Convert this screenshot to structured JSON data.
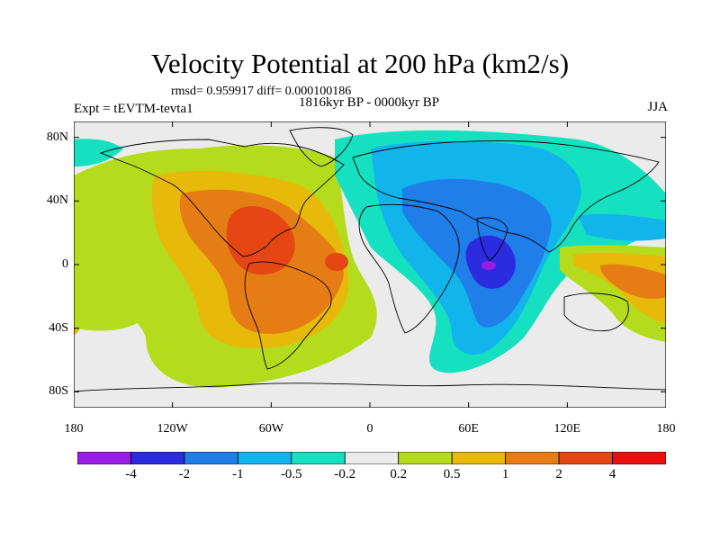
{
  "header": {
    "title": "Velocity Potential at 200 hPa (km2/s)",
    "stats": "rmsd= 0.959917 diff= 0.000100186",
    "subtitle": "1816kyr BP - 0000kyr BP",
    "experiment": "Expt = tEVTM-tevta1",
    "season": "JJA"
  },
  "map": {
    "projection": "cylindrical-equidistant",
    "lon_range": [
      -180,
      180
    ],
    "lat_range": [
      -90,
      90
    ],
    "lat_ticks": [
      {
        "label": "80N",
        "value": 80
      },
      {
        "label": "40N",
        "value": 40
      },
      {
        "label": "0",
        "value": 0
      },
      {
        "label": "40S",
        "value": -40
      },
      {
        "label": "80S",
        "value": -80
      }
    ],
    "lon_ticks": [
      {
        "label": "180",
        "value": -180
      },
      {
        "label": "120W",
        "value": -120
      },
      {
        "label": "60W",
        "value": -60
      },
      {
        "label": "0",
        "value": 0
      },
      {
        "label": "60E",
        "value": 60
      },
      {
        "label": "120E",
        "value": 120
      },
      {
        "label": "180",
        "value": 180
      }
    ]
  },
  "colorbar": {
    "labels": [
      "-4",
      "-2",
      "-1",
      "-0.5",
      "-0.2",
      "0.2",
      "0.5",
      "1",
      "2",
      "4"
    ],
    "colors": [
      "#9a1de6",
      "#2b2be0",
      "#1f7ee8",
      "#12b4ec",
      "#15e0c0",
      "#ebebeb",
      "#b4dc1c",
      "#e6b90a",
      "#e67d14",
      "#e64614",
      "#eb0f0f"
    ]
  },
  "colors": {
    "background": "#ebebeb",
    "coast": "#000000"
  }
}
